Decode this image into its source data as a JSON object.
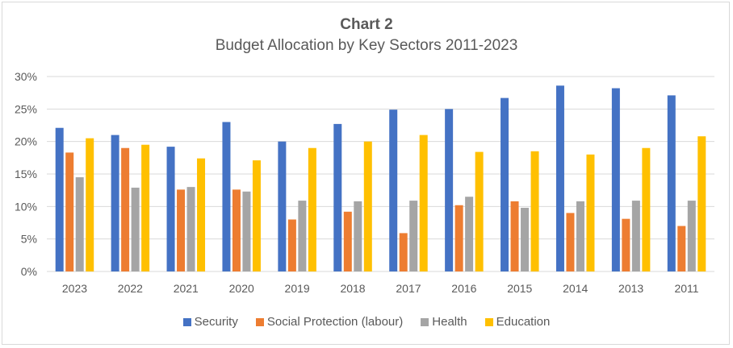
{
  "chart_data": {
    "type": "bar",
    "title": "Chart 2",
    "subtitle": "Budget Allocation by Key Sectors 2011-2023",
    "xlabel": "",
    "ylabel": "",
    "ylim": [
      0,
      30
    ],
    "yticks": [
      0,
      5,
      10,
      15,
      20,
      25,
      30
    ],
    "ytick_labels": [
      "0%",
      "5%",
      "10%",
      "15%",
      "20%",
      "25%",
      "30%"
    ],
    "grid": true,
    "legend_position": "bottom",
    "categories": [
      "2023",
      "2022",
      "2021",
      "2020",
      "2019",
      "2018",
      "2017",
      "2016",
      "2015",
      "2014",
      "2013",
      "2011"
    ],
    "series": [
      {
        "name": "Security",
        "color": "#4472c4",
        "values": [
          22.1,
          21.0,
          19.2,
          23.0,
          20.0,
          22.7,
          24.9,
          25.0,
          26.7,
          28.6,
          28.2,
          27.1
        ]
      },
      {
        "name": "Social Protection (labour)",
        "color": "#ed7d31",
        "values": [
          18.3,
          19.0,
          12.6,
          12.6,
          8.0,
          9.2,
          5.9,
          10.2,
          10.8,
          9.0,
          8.1,
          7.0
        ]
      },
      {
        "name": "Health",
        "color": "#a5a5a5",
        "values": [
          14.5,
          12.9,
          13.0,
          12.3,
          10.9,
          10.8,
          10.9,
          11.5,
          9.8,
          10.8,
          10.9,
          10.9
        ]
      },
      {
        "name": "Education",
        "color": "#ffc000",
        "values": [
          20.5,
          19.5,
          17.4,
          17.1,
          19.0,
          20.0,
          21.0,
          18.4,
          18.5,
          18.0,
          19.0,
          20.8
        ]
      }
    ]
  }
}
